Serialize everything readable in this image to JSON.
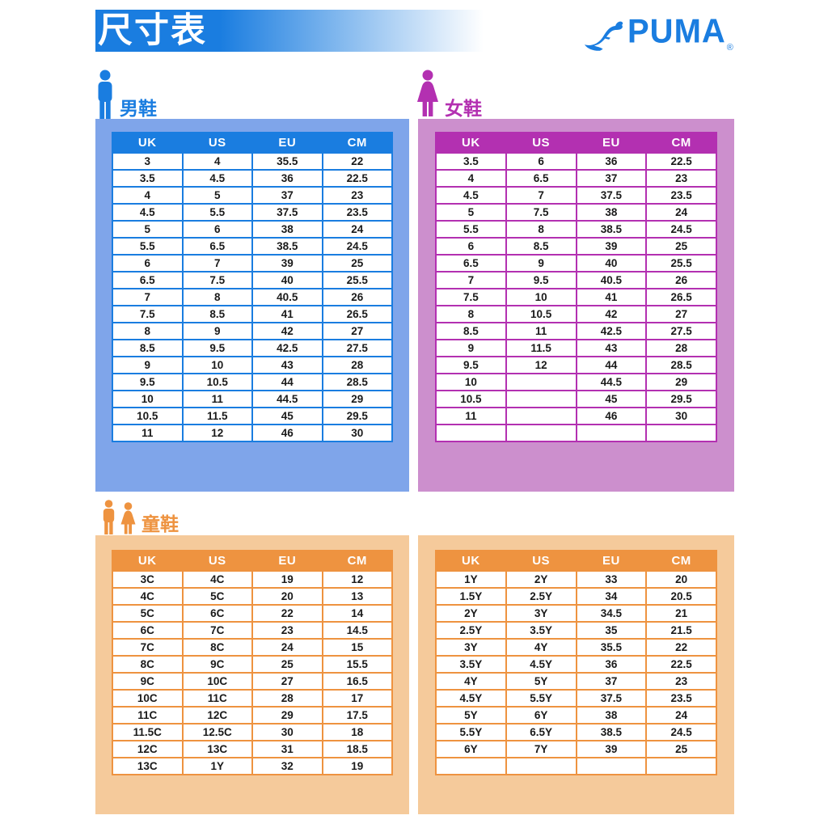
{
  "header": {
    "title": "尺寸表",
    "brand": "PUMA",
    "registered": "®"
  },
  "colors": {
    "brand_blue": "#1A7DE0",
    "men_accent": "#1A7DE0",
    "men_light": "#7FA5EA",
    "women_accent": "#B330B1",
    "women_light": "#CC8FCD",
    "kids_accent": "#EE9340",
    "kids_light": "#F5CA9B",
    "cell_text": "#1A1A1A"
  },
  "sections": {
    "men": {
      "label": "男鞋",
      "columns": [
        "UK",
        "US",
        "EU",
        "CM"
      ],
      "rows": [
        [
          "3",
          "4",
          "35.5",
          "22"
        ],
        [
          "3.5",
          "4.5",
          "36",
          "22.5"
        ],
        [
          "4",
          "5",
          "37",
          "23"
        ],
        [
          "4.5",
          "5.5",
          "37.5",
          "23.5"
        ],
        [
          "5",
          "6",
          "38",
          "24"
        ],
        [
          "5.5",
          "6.5",
          "38.5",
          "24.5"
        ],
        [
          "6",
          "7",
          "39",
          "25"
        ],
        [
          "6.5",
          "7.5",
          "40",
          "25.5"
        ],
        [
          "7",
          "8",
          "40.5",
          "26"
        ],
        [
          "7.5",
          "8.5",
          "41",
          "26.5"
        ],
        [
          "8",
          "9",
          "42",
          "27"
        ],
        [
          "8.5",
          "9.5",
          "42.5",
          "27.5"
        ],
        [
          "9",
          "10",
          "43",
          "28"
        ],
        [
          "9.5",
          "10.5",
          "44",
          "28.5"
        ],
        [
          "10",
          "11",
          "44.5",
          "29"
        ],
        [
          "10.5",
          "11.5",
          "45",
          "29.5"
        ],
        [
          "11",
          "12",
          "46",
          "30"
        ]
      ]
    },
    "women": {
      "label": "女鞋",
      "columns": [
        "UK",
        "US",
        "EU",
        "CM"
      ],
      "rows": [
        [
          "3.5",
          "6",
          "36",
          "22.5"
        ],
        [
          "4",
          "6.5",
          "37",
          "23"
        ],
        [
          "4.5",
          "7",
          "37.5",
          "23.5"
        ],
        [
          "5",
          "7.5",
          "38",
          "24"
        ],
        [
          "5.5",
          "8",
          "38.5",
          "24.5"
        ],
        [
          "6",
          "8.5",
          "39",
          "25"
        ],
        [
          "6.5",
          "9",
          "40",
          "25.5"
        ],
        [
          "7",
          "9.5",
          "40.5",
          "26"
        ],
        [
          "7.5",
          "10",
          "41",
          "26.5"
        ],
        [
          "8",
          "10.5",
          "42",
          "27"
        ],
        [
          "8.5",
          "11",
          "42.5",
          "27.5"
        ],
        [
          "9",
          "11.5",
          "43",
          "28"
        ],
        [
          "9.5",
          "12",
          "44",
          "28.5"
        ],
        [
          "10",
          "",
          "44.5",
          "29"
        ],
        [
          "10.5",
          "",
          "45",
          "29.5"
        ],
        [
          "11",
          "",
          "46",
          "30"
        ],
        [
          "",
          "",
          "",
          ""
        ]
      ]
    },
    "kids": {
      "label": "童鞋",
      "columns": [
        "UK",
        "US",
        "EU",
        "CM"
      ],
      "left_rows": [
        [
          "3C",
          "4C",
          "19",
          "12"
        ],
        [
          "4C",
          "5C",
          "20",
          "13"
        ],
        [
          "5C",
          "6C",
          "22",
          "14"
        ],
        [
          "6C",
          "7C",
          "23",
          "14.5"
        ],
        [
          "7C",
          "8C",
          "24",
          "15"
        ],
        [
          "8C",
          "9C",
          "25",
          "15.5"
        ],
        [
          "9C",
          "10C",
          "27",
          "16.5"
        ],
        [
          "10C",
          "11C",
          "28",
          "17"
        ],
        [
          "11C",
          "12C",
          "29",
          "17.5"
        ],
        [
          "11.5C",
          "12.5C",
          "30",
          "18"
        ],
        [
          "12C",
          "13C",
          "31",
          "18.5"
        ],
        [
          "13C",
          "1Y",
          "32",
          "19"
        ]
      ],
      "right_rows": [
        [
          "1Y",
          "2Y",
          "33",
          "20"
        ],
        [
          "1.5Y",
          "2.5Y",
          "34",
          "20.5"
        ],
        [
          "2Y",
          "3Y",
          "34.5",
          "21"
        ],
        [
          "2.5Y",
          "3.5Y",
          "35",
          "21.5"
        ],
        [
          "3Y",
          "4Y",
          "35.5",
          "22"
        ],
        [
          "3.5Y",
          "4.5Y",
          "36",
          "22.5"
        ],
        [
          "4Y",
          "5Y",
          "37",
          "23"
        ],
        [
          "4.5Y",
          "5.5Y",
          "37.5",
          "23.5"
        ],
        [
          "5Y",
          "6Y",
          "38",
          "24"
        ],
        [
          "5.5Y",
          "6.5Y",
          "38.5",
          "24.5"
        ],
        [
          "6Y",
          "7Y",
          "39",
          "25"
        ],
        [
          "",
          "",
          "",
          ""
        ]
      ]
    }
  }
}
